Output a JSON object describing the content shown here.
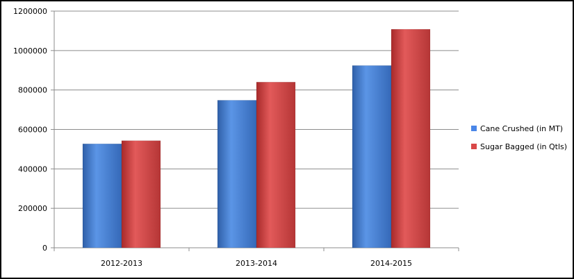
{
  "chart_data": {
    "type": "bar",
    "categories": [
      "2012-2013",
      "2013-2014",
      "2014-2015"
    ],
    "series": [
      {
        "name": "Cane Crushed (in MT)",
        "values": [
          527000,
          748000,
          924000
        ],
        "color": "#4a86e8"
      },
      {
        "name": "Sugar Bagged (in Qtls)",
        "values": [
          543000,
          840000,
          1108000
        ],
        "color": "#d94848"
      }
    ],
    "y_ticks": [
      "0",
      "200000",
      "400000",
      "600000",
      "800000",
      "1000000",
      "1200000"
    ],
    "ylim": [
      0,
      1200000
    ],
    "grid": true,
    "legend_position": "right"
  }
}
